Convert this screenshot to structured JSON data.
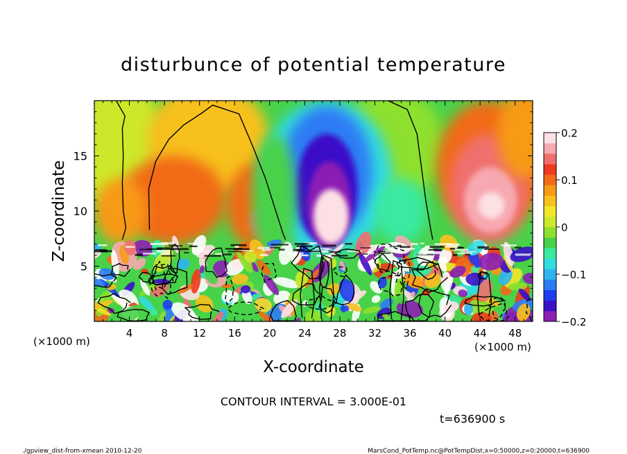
{
  "chart_data": {
    "type": "heatmap",
    "title": "disturbunce of potential temperature",
    "xlabel": "X-coordinate",
    "ylabel": "Z-coordinate",
    "x_unit": "(×1000 m)",
    "x_unit_right": "(×1000 m)",
    "x_range": [
      0,
      50
    ],
    "y_range": [
      0,
      20
    ],
    "xticks": [
      4,
      8,
      12,
      16,
      20,
      24,
      28,
      32,
      36,
      40,
      44,
      48
    ],
    "yticks": [
      5,
      10,
      15
    ],
    "colorbar": {
      "range": [
        -0.2,
        0.2
      ],
      "tick_values": [
        0.2,
        0.1,
        0,
        -0.1,
        -0.2
      ],
      "tick_labels": [
        "0.2",
        "0.1",
        "0",
        "−0.1",
        "−0.2"
      ],
      "colors": [
        "#8b1fb4",
        "#3a10c8",
        "#1f3cf0",
        "#2e7cf5",
        "#2fb4f0",
        "#33dce0",
        "#3be9a0",
        "#48d24a",
        "#8ee02e",
        "#cde82a",
        "#f0e62a",
        "#f7c01e",
        "#f79a18",
        "#f26a18",
        "#ee3a1e",
        "#f07070",
        "#f7a8b0",
        "#fde0e4"
      ]
    },
    "structures": [
      {
        "kind": "cold_plume",
        "x_center": 26.5,
        "z_top": 18.5,
        "min_value": -0.2
      },
      {
        "kind": "warm_plume",
        "x_center": 45,
        "z_top": 19.5,
        "max_value": 0.2
      },
      {
        "kind": "warm_plume",
        "x_center": 12,
        "z_top": 17,
        "max_value": 0.05
      },
      {
        "kind": "warm_core",
        "x_center": 19,
        "z_top": 9,
        "max_value": 0.14
      },
      {
        "kind": "mixed_layer",
        "z_top": 7.2
      }
    ],
    "contour_interval": "CONTOUR INTERVAL = 3.000E-01",
    "time_label": "t=636900 s"
  },
  "footer": {
    "left": "./gpview_dist-from-xmean 2010-12-20",
    "right": "MarsCond_PotTemp.nc@PotTempDist,x=0:50000,z=0:20000,t=636900"
  }
}
